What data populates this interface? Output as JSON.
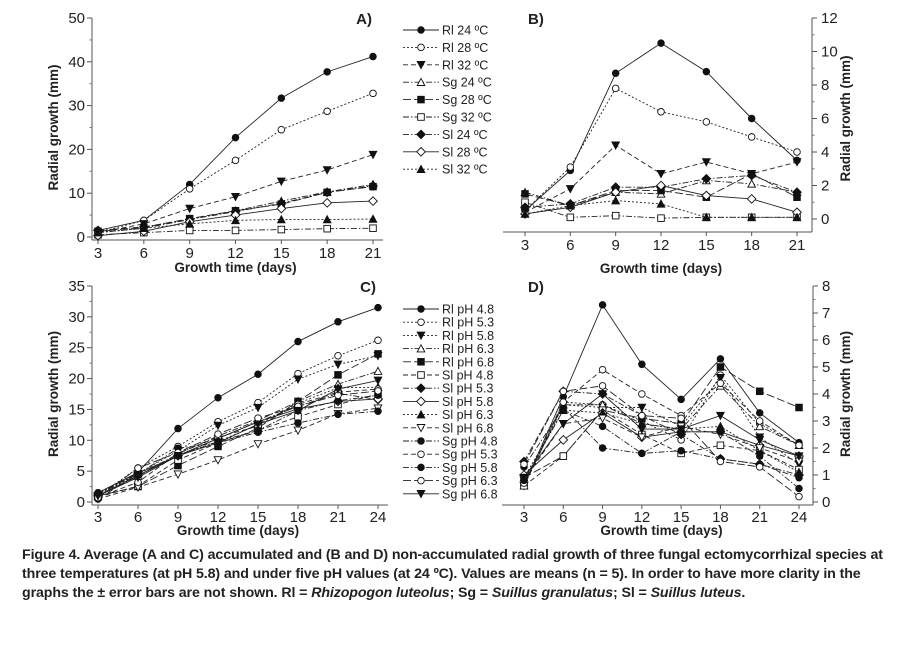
{
  "chart_data": [
    {
      "type": "line",
      "panel_label": "A)",
      "xlabel": "Growth time (days)",
      "ylabel": "Radial growth (mm)",
      "x": [
        3,
        6,
        9,
        12,
        15,
        18,
        21
      ],
      "ylim": [
        0,
        50
      ],
      "yticks": [
        0,
        10,
        20,
        30,
        40,
        50
      ],
      "y_axis_side": "left",
      "legend": "right-outside",
      "grid": false,
      "series": [
        {
          "name": "Rl 24 ºC",
          "marker": "circle",
          "filled": true,
          "dash": "solid",
          "values": [
            1.5,
            3.8,
            12,
            22.7,
            31.7,
            37.7,
            41.2
          ]
        },
        {
          "name": "Rl 28 ºC",
          "marker": "circle",
          "filled": false,
          "dash": "dot",
          "values": [
            1,
            3.8,
            11,
            17.5,
            24.5,
            28.7,
            32.8
          ]
        },
        {
          "name": "Rl 32 ºC",
          "marker": "triangle-down",
          "filled": true,
          "dash": "dash",
          "values": [
            1,
            3,
            6.5,
            9.2,
            12.7,
            15.3,
            18.8
          ]
        },
        {
          "name": "Sg 24 ºC",
          "marker": "triangle-up",
          "filled": false,
          "dash": "dashdot",
          "values": [
            1,
            2,
            4,
            6,
            8.2,
            10.3,
            12
          ]
        },
        {
          "name": "Sg 28 ºC",
          "marker": "square",
          "filled": true,
          "dash": "longdash",
          "values": [
            1.3,
            2.2,
            4.2,
            6,
            7.5,
            10.2,
            11.5
          ]
        },
        {
          "name": "Sg 32 ºC",
          "marker": "square",
          "filled": false,
          "dash": "dashdot",
          "values": [
            0.5,
            1,
            1.5,
            1.5,
            1.7,
            1.9,
            2
          ]
        },
        {
          "name": "Sl 24 ºC",
          "marker": "diamond",
          "filled": true,
          "dash": "dashdot",
          "values": [
            1.5,
            2.3,
            4,
            5.8,
            7.7,
            10.2,
            11.7
          ]
        },
        {
          "name": "Sl 28 ºC",
          "marker": "diamond",
          "filled": false,
          "dash": "solid",
          "values": [
            0.3,
            1.3,
            3.5,
            5,
            6.5,
            7.8,
            8.2
          ]
        },
        {
          "name": "Sl 32 ºC",
          "marker": "triangle-up",
          "filled": true,
          "dash": "dot",
          "values": [
            1,
            2,
            3,
            3.8,
            4,
            4,
            4.1
          ]
        }
      ]
    },
    {
      "type": "line",
      "panel_label": "B)",
      "xlabel": "Growth time (days)",
      "ylabel": "Radial growth (mm)",
      "x": [
        3,
        6,
        9,
        12,
        15,
        18,
        21
      ],
      "ylim": [
        0,
        12
      ],
      "yticks": [
        0,
        2,
        4,
        6,
        8,
        10,
        12
      ],
      "y_axis_side": "right",
      "grid": false,
      "series": [
        {
          "name": "Rl 24 ºC",
          "marker": "circle",
          "filled": true,
          "dash": "solid",
          "values": [
            0.5,
            2.9,
            8.7,
            10.5,
            8.8,
            6,
            3.5
          ]
        },
        {
          "name": "Rl 28 ºC",
          "marker": "circle",
          "filled": false,
          "dash": "dot",
          "values": [
            0.5,
            3.1,
            7.8,
            6.4,
            5.8,
            4.9,
            4
          ]
        },
        {
          "name": "Rl 32 ºC",
          "marker": "triangle-down",
          "filled": true,
          "dash": "dash",
          "values": [
            0.4,
            1.8,
            4.4,
            2.7,
            3.4,
            2.7,
            3.4
          ]
        },
        {
          "name": "Sg 24 ºC",
          "marker": "triangle-up",
          "filled": false,
          "dash": "dashdot",
          "values": [
            1.6,
            0.8,
            1.6,
            1.5,
            2.3,
            2.1,
            1.6
          ]
        },
        {
          "name": "Sg 28 ºC",
          "marker": "square",
          "filled": true,
          "dash": "longdash",
          "values": [
            1.5,
            0.8,
            1.7,
            1.7,
            1.3,
            2.7,
            1.3
          ]
        },
        {
          "name": "Sg 32 ºC",
          "marker": "square",
          "filled": false,
          "dash": "dashdot",
          "values": [
            1,
            0.1,
            0.2,
            0.05,
            0.1,
            0.1,
            0.1
          ]
        },
        {
          "name": "Sl 24 ºC",
          "marker": "diamond",
          "filled": true,
          "dash": "dashdot",
          "values": [
            0.7,
            0.9,
            1.9,
            1.9,
            2.4,
            2.6,
            1.6
          ]
        },
        {
          "name": "Sl 28 ºC",
          "marker": "diamond",
          "filled": false,
          "dash": "solid",
          "values": [
            0.3,
            0.7,
            1.6,
            2,
            1.4,
            1.2,
            0.4
          ]
        },
        {
          "name": "Sl 32 ºC",
          "marker": "triangle-up",
          "filled": true,
          "dash": "dot",
          "values": [
            0.3,
            0.8,
            1.1,
            0.9,
            0.1,
            0.1,
            0.1
          ]
        }
      ]
    },
    {
      "type": "line",
      "panel_label": "C)",
      "xlabel": "Growth time (days)",
      "ylabel": "Radial growth (mm)",
      "x": [
        3,
        6,
        9,
        12,
        15,
        18,
        21,
        24
      ],
      "ylim": [
        0,
        35
      ],
      "yticks": [
        0,
        5,
        10,
        15,
        20,
        25,
        30,
        35
      ],
      "y_axis_side": "left",
      "legend": "right-outside",
      "grid": false,
      "series": [
        {
          "name": "Rl pH 4.8",
          "marker": "circle",
          "filled": true,
          "dash": "solid",
          "values": [
            1.5,
            4.8,
            11.9,
            16.9,
            20.7,
            26,
            29.2,
            31.5
          ]
        },
        {
          "name": "Rl pH 5.3",
          "marker": "circle",
          "filled": false,
          "dash": "dot",
          "values": [
            1,
            5.5,
            9,
            13,
            16.1,
            20.8,
            23.7,
            26.2
          ]
        },
        {
          "name": "Rl pH 5.8",
          "marker": "triangle-down",
          "filled": true,
          "dash": "dot",
          "values": [
            1,
            4.6,
            8.3,
            12.4,
            15.3,
            19.9,
            22.3,
            23.7
          ]
        },
        {
          "name": "Rl pH 6.3",
          "marker": "triangle-up",
          "filled": false,
          "dash": "dashdot",
          "values": [
            1,
            4.2,
            7.8,
            10.7,
            13.2,
            16.3,
            19.1,
            21.2
          ]
        },
        {
          "name": "Rl pH 6.8",
          "marker": "square",
          "filled": true,
          "dash": "longdash",
          "values": [
            1,
            2.5,
            5.9,
            9,
            12,
            16.3,
            20.6,
            24
          ]
        },
        {
          "name": "Sl pH 4.8",
          "marker": "square",
          "filled": false,
          "dash": "dash",
          "values": [
            0.8,
            2.6,
            6.8,
            9.6,
            11.6,
            13.8,
            15.8,
            17.5
          ]
        },
        {
          "name": "Sl pH 5.3",
          "marker": "diamond",
          "filled": true,
          "dash": "dashdot",
          "values": [
            1.3,
            4.7,
            7.5,
            10.3,
            13,
            15.5,
            17.6,
            16.6
          ]
        },
        {
          "name": "Sl pH 5.8",
          "marker": "diamond",
          "filled": false,
          "dash": "solid",
          "values": [
            1,
            4.3,
            7.5,
            10.3,
            13,
            15.1,
            16.3,
            16.7
          ]
        },
        {
          "name": "Sl pH 6.3",
          "marker": "triangle-up",
          "filled": true,
          "dash": "dot",
          "values": [
            1.3,
            4.6,
            7.6,
            9.8,
            12.5,
            16,
            18.5,
            18.6
          ]
        },
        {
          "name": "Sl pH 6.8",
          "marker": "triangle-down",
          "filled": false,
          "dash": "dash",
          "values": [
            0.5,
            2.4,
            4.5,
            6.8,
            9.4,
            11.6,
            14.3,
            15.2
          ]
        },
        {
          "name": "Sg pH 4.8",
          "marker": "circle",
          "filled": true,
          "dash": "dashdot",
          "values": [
            1.5,
            4.5,
            8.7,
            9.6,
            11.3,
            12.8,
            14.2,
            14.7
          ]
        },
        {
          "name": "Sg pH 5.3",
          "marker": "circle",
          "filled": false,
          "dash": "dash",
          "values": [
            0.8,
            3.2,
            7.9,
            10.5,
            12.3,
            15.8,
            17.8,
            18.3
          ]
        },
        {
          "name": "Sg pH 5.8",
          "marker": "circle",
          "filled": true,
          "dash": "dashdot",
          "values": [
            0.5,
            4.6,
            7.5,
            9.8,
            11.6,
            14.8,
            16.4,
            17.3
          ]
        },
        {
          "name": "Sg pH 6.3",
          "marker": "circle",
          "filled": false,
          "dash": "longdash",
          "values": [
            0.7,
            5.5,
            8,
            11,
            13.6,
            15.5,
            17.3,
            18
          ]
        },
        {
          "name": "Sg pH 6.8",
          "marker": "triangle-down",
          "filled": true,
          "dash": "solid",
          "values": [
            1,
            4,
            7.5,
            9.6,
            12.6,
            14.8,
            18.3,
            19.7
          ]
        }
      ]
    },
    {
      "type": "line",
      "panel_label": "D)",
      "xlabel": "Growth time (days)",
      "ylabel": "Radial growth (mm)",
      "x": [
        3,
        6,
        9,
        12,
        15,
        18,
        21,
        24
      ],
      "ylim": [
        0,
        8
      ],
      "yticks": [
        0,
        1,
        2,
        3,
        4,
        5,
        6,
        7,
        8
      ],
      "y_axis_side": "right",
      "grid": false,
      "series": [
        {
          "name": "Rl pH 4.8",
          "marker": "circle",
          "filled": true,
          "dash": "solid",
          "values": [
            0.6,
            3.9,
            7.3,
            5.1,
            3.8,
            5.3,
            3.3,
            2.2
          ]
        },
        {
          "name": "Rl pH 5.3",
          "marker": "circle",
          "filled": false,
          "dash": "dot",
          "values": [
            0.6,
            3.7,
            3.6,
            3,
            2.3,
            4.7,
            2.9,
            2.1
          ]
        },
        {
          "name": "Rl pH 5.8",
          "marker": "triangle-down",
          "filled": true,
          "dash": "dot",
          "values": [
            0.6,
            3.6,
            3.5,
            3.5,
            2.8,
            4.6,
            2.4,
            1.4
          ]
        },
        {
          "name": "Rl pH 6.3",
          "marker": "triangle-up",
          "filled": false,
          "dash": "dashdot",
          "values": [
            0.6,
            3.6,
            3.6,
            2.9,
            2.7,
            4.3,
            2.8,
            2.1
          ]
        },
        {
          "name": "Rl pH 6.8",
          "marker": "square",
          "filled": true,
          "dash": "longdash",
          "values": [
            0.9,
            1.7,
            3.4,
            3.1,
            2.9,
            5,
            4.1,
            3.5
          ]
        },
        {
          "name": "Sl pH 4.8",
          "marker": "square",
          "filled": false,
          "dash": "dash",
          "values": [
            0.6,
            1.7,
            3.4,
            2.5,
            1.8,
            2.1,
            1.9,
            1.2
          ]
        },
        {
          "name": "Sl pH 5.3",
          "marker": "diamond",
          "filled": true,
          "dash": "dashdot",
          "values": [
            1.5,
            4.1,
            4,
            3.2,
            2.5,
            1.6,
            1.4,
            1
          ]
        },
        {
          "name": "Sl pH 5.8",
          "marker": "diamond",
          "filled": false,
          "dash": "solid",
          "values": [
            1,
            2.3,
            3.3,
            2.4,
            2.6,
            2.6,
            2.1,
            1.7
          ]
        },
        {
          "name": "Sl pH 6.3",
          "marker": "triangle-up",
          "filled": true,
          "dash": "dot",
          "values": [
            0.9,
            3.4,
            3.3,
            2.9,
            2.7,
            2.8,
            1.9,
            1.1
          ]
        },
        {
          "name": "Sl pH 6.8",
          "marker": "triangle-down",
          "filled": false,
          "dash": "dash",
          "values": [
            0.8,
            2.9,
            3.1,
            2.4,
            2.8,
            2.5,
            2,
            1.5
          ]
        },
        {
          "name": "Sg pH 4.8",
          "marker": "circle",
          "filled": true,
          "dash": "dashdot",
          "values": [
            1.3,
            3.5,
            2,
            1.8,
            1.9,
            1.6,
            1.4,
            0.9
          ]
        },
        {
          "name": "Sg pH 5.3",
          "marker": "circle",
          "filled": false,
          "dash": "dash",
          "values": [
            0.7,
            3.7,
            4.9,
            4,
            3.2,
            4.4,
            3,
            2.1
          ]
        },
        {
          "name": "Sg pH 5.8",
          "marker": "circle",
          "filled": true,
          "dash": "dashdot",
          "values": [
            0.8,
            3.4,
            2.8,
            1.8,
            2.6,
            2.6,
            1.7,
            0.5
          ]
        },
        {
          "name": "Sg pH 6.3",
          "marker": "circle",
          "filled": false,
          "dash": "longdash",
          "values": [
            1.4,
            4.1,
            4.3,
            3.2,
            3.1,
            1.5,
            1.3,
            0.2
          ]
        },
        {
          "name": "Sg pH 6.8",
          "marker": "triangle-down",
          "filled": true,
          "dash": "solid",
          "values": [
            0.9,
            2.9,
            4,
            2.7,
            2.7,
            3.2,
            2.3,
            1.7
          ]
        }
      ]
    }
  ],
  "caption": {
    "text1": "Figure 4. Average (A and C) accumulated and (B and D) non-accumulated radial growth of three fungal ectomycorrhizal species at three temperatures (at pH 5.8) and under five pH values (at 24 ºC). Values are means (n = 5). In order to have more clarity in the graphs the ± error bars are not shown. Rl = ",
    "sp1": "Rhizopogon luteolus",
    "text2": "; Sg = ",
    "sp2": "Suillus granulatus",
    "text3": "; Sl = ",
    "sp3": "Suillus luteus",
    "text4": "."
  }
}
